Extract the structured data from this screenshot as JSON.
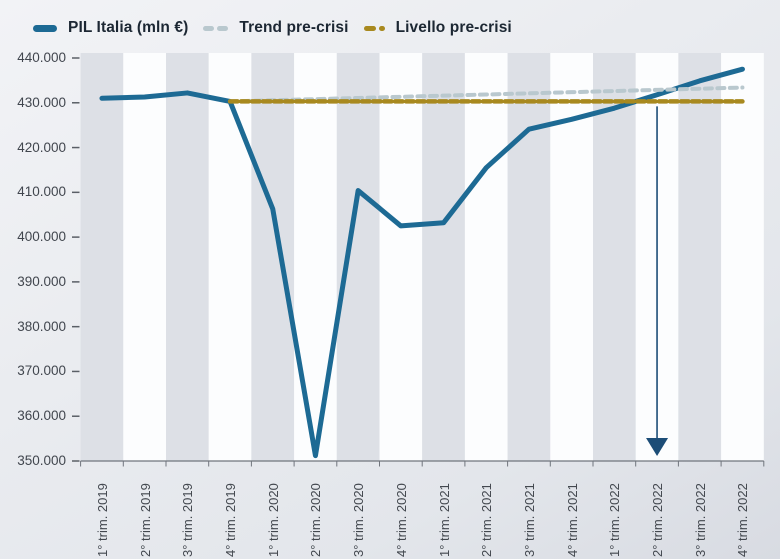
{
  "legend": [
    {
      "label": "PIL Italia (mln €)",
      "color": "#1d6a94",
      "style": "solid"
    },
    {
      "label": "Trend pre-crisi",
      "color": "#b9c8ce",
      "style": "dashed"
    },
    {
      "label": "Livello pre-crisi",
      "color": "#a8891f",
      "style": "dashed"
    }
  ],
  "chart_data": {
    "type": "line",
    "title": "",
    "xlabel": "",
    "ylabel": "",
    "categories": [
      "1° trim. 2019",
      "2° trim. 2019",
      "3° trim. 2019",
      "4° trim. 2019",
      "1° trim. 2020",
      "2° trim. 2020",
      "3° trim. 2020",
      "4° trim. 2020",
      "1° trim. 2021",
      "2° trim. 2021",
      "3° trim. 2021",
      "4° trim. 2021",
      "1° trim. 2022",
      "2° trim. 2022",
      "3° trim. 2022",
      "4° trim. 2022"
    ],
    "series": [
      {
        "name": "PIL Italia (mln €)",
        "color": "#1d6a94",
        "dash": null,
        "width": 5,
        "values": [
          431000,
          431300,
          432200,
          430300,
          406300,
          351200,
          410400,
          402500,
          403200,
          415500,
          424100,
          426300,
          428800,
          431800,
          434900,
          437500
        ]
      },
      {
        "name": "Trend pre-crisi",
        "color": "#b9c8ce",
        "dash": "7 5.5",
        "width": 4,
        "values": [
          null,
          null,
          null,
          430300,
          430558,
          430817,
          431075,
          431333,
          431592,
          431850,
          432108,
          432367,
          432625,
          432883,
          433142,
          433400
        ]
      },
      {
        "name": "Livello pre-crisi",
        "color": "#a8891f",
        "dash": "7.5 3.5",
        "width": 4.5,
        "values": [
          null,
          null,
          null,
          430300,
          430300,
          430300,
          430300,
          430300,
          430300,
          430300,
          430300,
          430300,
          430300,
          430300,
          430300,
          430300
        ]
      }
    ],
    "ylim": [
      350000,
      440000
    ],
    "ytick_step": 10000,
    "ytick_labels": [
      "440.000",
      "430.000",
      "420.000",
      "410.000",
      "400.000",
      "390.000",
      "380.000",
      "370.000",
      "360.000",
      "350.000"
    ],
    "grid": false,
    "legend_position": "top-left",
    "band_colors": [
      "#dde0e6",
      "#fcfdfe"
    ],
    "axis_color": "#70757d",
    "tick_color": "#5a5f66",
    "annotation": {
      "type": "down-arrow",
      "category": "2° trim. 2022",
      "category_index": 13,
      "color": "#1c4d77"
    }
  }
}
